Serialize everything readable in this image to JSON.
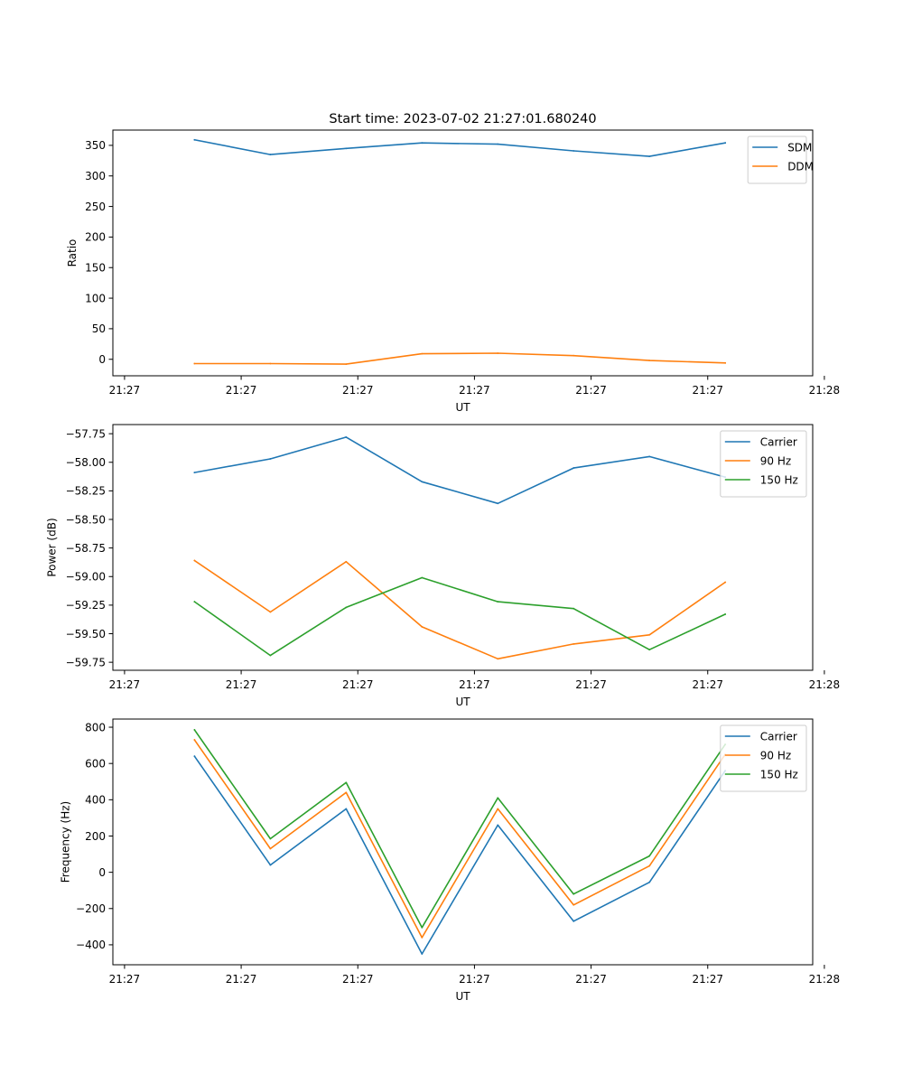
{
  "chart_data": [
    {
      "type": "line",
      "title": "Start time: 2023-07-02 21:27:01.680240",
      "xlabel": "UT",
      "ylabel": "Ratio",
      "x": [
        0.7,
        1.35,
        2.0,
        2.65,
        3.3,
        3.95,
        4.6,
        5.25
      ],
      "xlim": [
        0,
        6
      ],
      "xticks": [
        0.1,
        1.1,
        2.1,
        3.1,
        4.1,
        5.1,
        6.1
      ],
      "xtick_labels": [
        "21:27",
        "21:27",
        "21:27",
        "21:27",
        "21:27",
        "21:27",
        "21:28"
      ],
      "ylim": [
        -27,
        375
      ],
      "yticks": [
        0,
        50,
        100,
        150,
        200,
        250,
        300,
        350
      ],
      "ytick_labels": [
        "0",
        "50",
        "100",
        "150",
        "200",
        "250",
        "300",
        "350"
      ],
      "legend_position": "top-right",
      "series": [
        {
          "name": "SDM",
          "color": "#1f77b4",
          "values": [
            359,
            335,
            345,
            354,
            352,
            341,
            332,
            354
          ]
        },
        {
          "name": "DDM",
          "color": "#ff7f0e",
          "values": [
            -7,
            -7,
            -8,
            9,
            10,
            6,
            -2,
            -6
          ]
        }
      ]
    },
    {
      "type": "line",
      "title": "",
      "xlabel": "UT",
      "ylabel": "Power (dB)",
      "x": [
        0.7,
        1.35,
        2.0,
        2.65,
        3.3,
        3.95,
        4.6,
        5.25
      ],
      "xlim": [
        0,
        6
      ],
      "xticks": [
        0.1,
        1.1,
        2.1,
        3.1,
        4.1,
        5.1,
        6.1
      ],
      "xtick_labels": [
        "21:27",
        "21:27",
        "21:27",
        "21:27",
        "21:27",
        "21:27",
        "21:28"
      ],
      "ylim": [
        -59.82,
        -57.67
      ],
      "yticks": [
        -59.75,
        -59.5,
        -59.25,
        -59.0,
        -58.75,
        -58.5,
        -58.25,
        -58.0,
        -57.75
      ],
      "ytick_labels": [
        "−59.75",
        "−59.50",
        "−59.25",
        "−59.00",
        "−58.75",
        "−58.50",
        "−58.25",
        "−58.00",
        "−57.75"
      ],
      "legend_position": "top-right",
      "series": [
        {
          "name": "Carrier",
          "color": "#1f77b4",
          "values": [
            -58.09,
            -57.97,
            -57.78,
            -58.17,
            -58.36,
            -58.05,
            -57.95,
            -58.13
          ]
        },
        {
          "name": "90 Hz",
          "color": "#ff7f0e",
          "values": [
            -58.86,
            -59.31,
            -58.87,
            -59.44,
            -59.72,
            -59.59,
            -59.51,
            -59.05
          ]
        },
        {
          "name": "150 Hz",
          "color": "#2ca02c",
          "values": [
            -59.22,
            -59.69,
            -59.27,
            -59.01,
            -59.22,
            -59.28,
            -59.64,
            -59.33
          ]
        }
      ]
    },
    {
      "type": "line",
      "title": "",
      "xlabel": "UT",
      "ylabel": "Frequency (Hz)",
      "x": [
        0.7,
        1.35,
        2.0,
        2.65,
        3.3,
        3.95,
        4.6,
        5.25
      ],
      "xlim": [
        0,
        6
      ],
      "xticks": [
        0.1,
        1.1,
        2.1,
        3.1,
        4.1,
        5.1,
        6.1
      ],
      "xtick_labels": [
        "21:27",
        "21:27",
        "21:27",
        "21:27",
        "21:27",
        "21:27",
        "21:28"
      ],
      "ylim": [
        -510,
        845
      ],
      "yticks": [
        -400,
        -200,
        0,
        200,
        400,
        600,
        800
      ],
      "ytick_labels": [
        "−400",
        "−200",
        "0",
        "200",
        "400",
        "600",
        "800"
      ],
      "legend_position": "top-right",
      "series": [
        {
          "name": "Carrier",
          "color": "#1f77b4",
          "values": [
            640,
            40,
            350,
            -450,
            260,
            -270,
            -55,
            560
          ]
        },
        {
          "name": "90 Hz",
          "color": "#ff7f0e",
          "values": [
            730,
            130,
            440,
            -360,
            350,
            -180,
            35,
            650
          ]
        },
        {
          "name": "150 Hz",
          "color": "#2ca02c",
          "values": [
            785,
            185,
            495,
            -305,
            410,
            -120,
            90,
            705
          ]
        }
      ]
    }
  ]
}
